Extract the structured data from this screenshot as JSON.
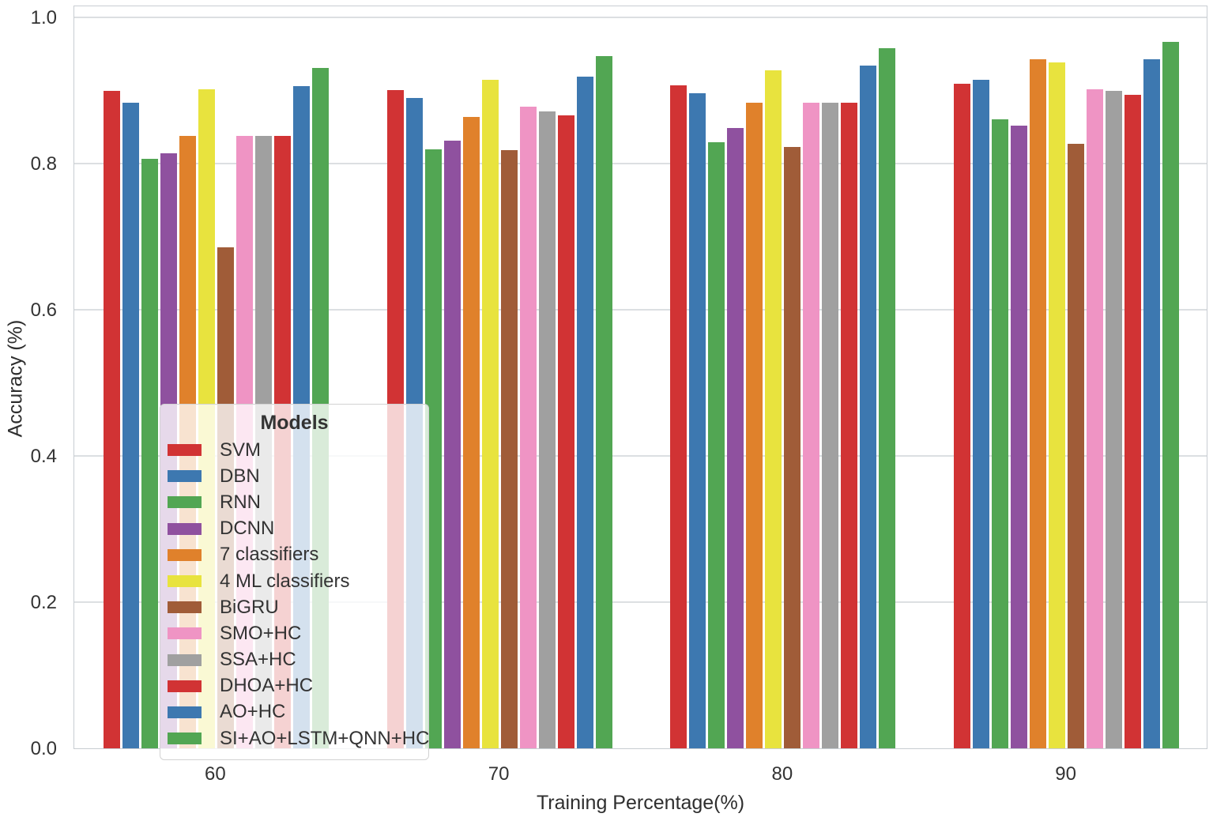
{
  "figure": {
    "background_color": "#ffffff",
    "grid_color": "#dcdfe2",
    "frame_color": "#c8cdd2",
    "text_color": "#333333"
  },
  "chart_data": {
    "type": "bar",
    "title": "",
    "xlabel": "Training Percentage(%)",
    "ylabel": "Accuracy (%)",
    "categories": [
      "60",
      "70",
      "80",
      "90"
    ],
    "y_ticks": [
      0.0,
      0.2,
      0.4,
      0.6,
      0.8,
      1.0
    ],
    "y_tick_labels": [
      "0.0",
      "0.2",
      "0.4",
      "0.6",
      "0.8",
      "1.0"
    ],
    "ylim": [
      0,
      1.017
    ],
    "grid": true,
    "legend": {
      "title": "Models",
      "position": "lower-left"
    },
    "series": [
      {
        "name": "SVM",
        "color": "#d13334",
        "values": [
          0.9,
          0.901,
          0.907,
          0.909
        ]
      },
      {
        "name": "DBN",
        "color": "#3d78b0",
        "values": [
          0.883,
          0.89,
          0.896,
          0.915
        ]
      },
      {
        "name": "RNN",
        "color": "#52a653",
        "values": [
          0.807,
          0.82,
          0.829,
          0.861
        ]
      },
      {
        "name": "DCNN",
        "color": "#8f519f",
        "values": [
          0.814,
          0.831,
          0.849,
          0.852
        ]
      },
      {
        "name": "7 classifiers",
        "color": "#e0812b",
        "values": [
          0.838,
          0.864,
          0.883,
          0.943
        ]
      },
      {
        "name": "4 ML classifiers",
        "color": "#e8e33e",
        "values": [
          0.902,
          0.915,
          0.928,
          0.938
        ]
      },
      {
        "name": "BiGRU",
        "color": "#a05c38",
        "values": [
          0.685,
          0.818,
          0.823,
          0.827
        ]
      },
      {
        "name": "SMO+HC",
        "color": "#ef94c4",
        "values": [
          0.838,
          0.878,
          0.883,
          0.902
        ]
      },
      {
        "name": "SSA+HC",
        "color": "#a0a0a0",
        "values": [
          0.838,
          0.871,
          0.883,
          0.899
        ]
      },
      {
        "name": "DHOA+HC",
        "color": "#d13334",
        "values": [
          0.838,
          0.866,
          0.883,
          0.894
        ]
      },
      {
        "name": "AO+HC",
        "color": "#3d78b0",
        "values": [
          0.906,
          0.919,
          0.934,
          0.943
        ]
      },
      {
        "name": "SI+AO+LSTM+QNN+HC",
        "color": "#52a653",
        "values": [
          0.931,
          0.947,
          0.958,
          0.966
        ]
      }
    ]
  }
}
